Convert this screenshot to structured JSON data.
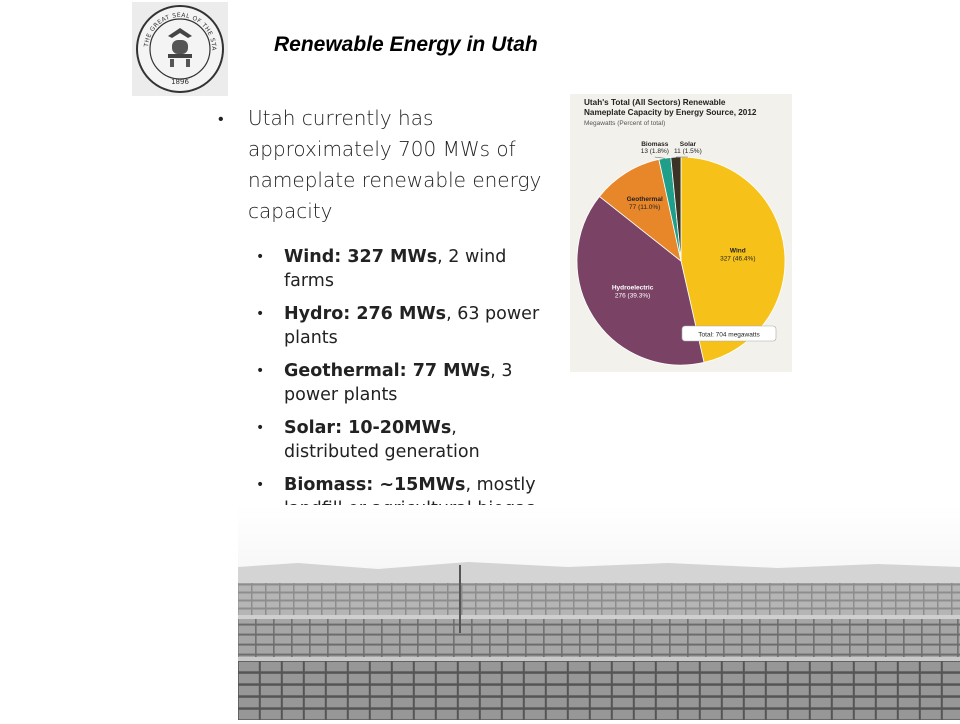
{
  "header": {
    "title": "Renewable Energy in Utah",
    "seal": {
      "text": "THE GREAT SEAL OF THE STATE OF UTAH",
      "year": "1896",
      "icon": "state-seal-icon"
    }
  },
  "intro_bullet": "Utah currently has approximately 700 MWs of nameplate renewable energy capacity",
  "sub_bullets": [
    {
      "bold": "Wind: 327 MWs",
      "rest": ", 2 wind farms"
    },
    {
      "bold": "Hydro: 276 MWs",
      "rest": ", 63 power plants"
    },
    {
      "bold": "Geothermal: 77 MWs",
      "rest": ", 3 power plants"
    },
    {
      "bold": "Solar: 10-20MWs",
      "rest": ", distributed generation"
    },
    {
      "bold": "Biomass: ~15MWs",
      "rest": ", mostly landfill or agricultural biogas"
    }
  ],
  "chart_data": {
    "type": "pie",
    "title": "Utah's Total (All Sectors) Renewable Nameplate Capacity by Energy Source, 2012",
    "subtitle": "Megawatts (Percent of total)",
    "total_label": "Total: 704 megawatts",
    "slices": [
      {
        "name": "Wind",
        "value": 327,
        "label": "327 (46.4%)",
        "color": "#f6c21a"
      },
      {
        "name": "Hydroelectric",
        "value": 276,
        "label": "276 (39.3%)",
        "color": "#7a4366"
      },
      {
        "name": "Geothermal",
        "value": 77,
        "label": "77 (11.0%)",
        "color": "#e8862a"
      },
      {
        "name": "Biomass",
        "value": 13,
        "label": "13 (1.8%)",
        "color": "#1f9e8a"
      },
      {
        "name": "Solar",
        "value": 11,
        "label": "11 (1.5%)",
        "color": "#3b3326"
      }
    ]
  },
  "background": {
    "photo": "solar-panel-field-icon"
  }
}
